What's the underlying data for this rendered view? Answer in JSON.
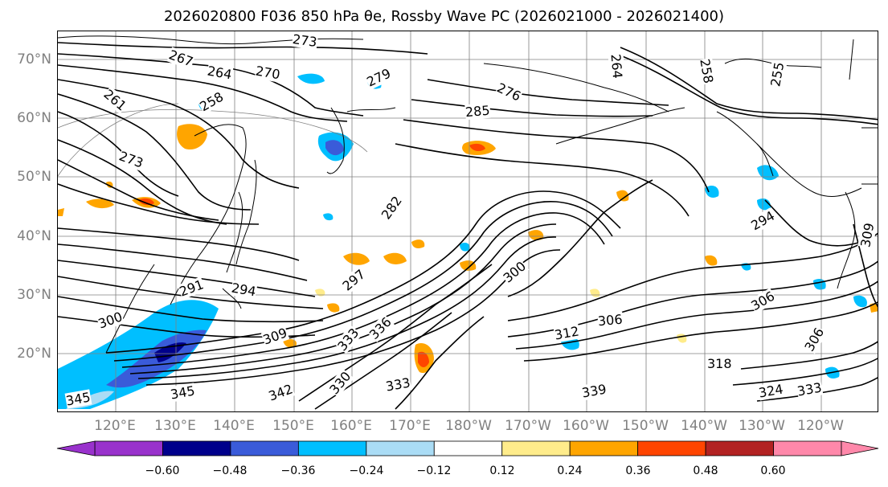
{
  "title": "2026020800 F036 850 hPa θe, Rossby Wave PC (2026021000 - 2026021400)",
  "latitude_labels": [
    "70°N",
    "60°N",
    "50°N",
    "40°N",
    "30°N",
    "20°N"
  ],
  "longitude_labels": [
    "120°E",
    "130°E",
    "140°E",
    "150°E",
    "160°E",
    "170°E",
    "180°W",
    "170°W",
    "160°W",
    "150°W",
    "140°W",
    "130°W",
    "120°W"
  ],
  "contour_labels": [
    "273",
    "267",
    "264",
    "270",
    "279",
    "261",
    "258",
    "285",
    "276",
    "264",
    "258",
    "255",
    "273",
    "282",
    "300",
    "294",
    "309",
    "297",
    "294",
    "291",
    "306",
    "318",
    "312",
    "306",
    "336",
    "333",
    "309",
    "330",
    "345",
    "342",
    "333",
    "345",
    "324",
    "306",
    "300",
    "339",
    "333"
  ],
  "colorbar": {
    "ticks": [
      "−0.60",
      "−0.48",
      "−0.36",
      "−0.24",
      "−0.12",
      "0.12",
      "0.24",
      "0.36",
      "0.48",
      "0.60"
    ],
    "colors": [
      "#9932cc",
      "#00008b",
      "#3a5bd9",
      "#00bfff",
      "#aadcf5",
      "#ffffff",
      "#ffec8b",
      "#ffa500",
      "#ff4500",
      "#b22222",
      "#ff88aa",
      "#ff88aa"
    ],
    "low_extend_color": "#9932cc",
    "high_extend_color": "#ff88aa"
  },
  "colors": {
    "contour": "#000000",
    "coastline": "#000000",
    "gridline": "#808080",
    "axis_labels": "#808080"
  }
}
